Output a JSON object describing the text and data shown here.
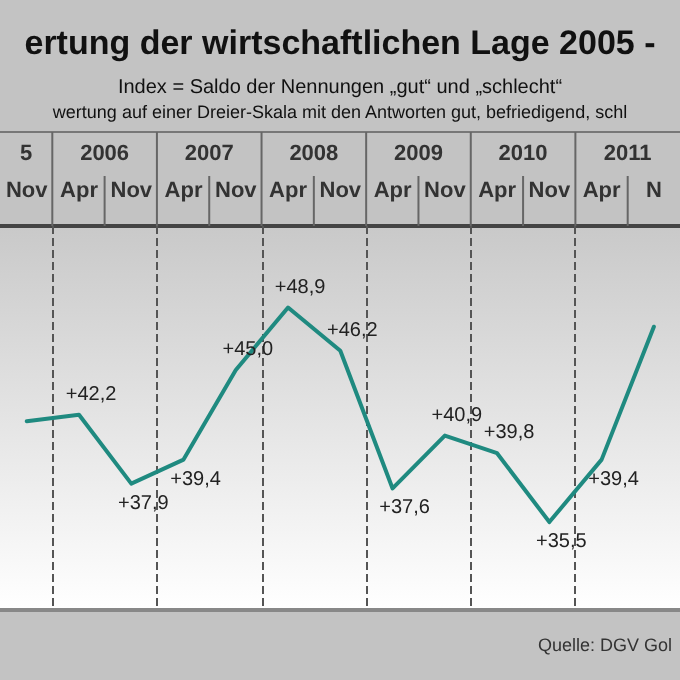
{
  "chart_data": {
    "type": "line",
    "title": "ertung der wirtschaftlichen Lage 2005 -",
    "subtitle": "Index = Saldo der Nennungen „gut“ und „schlecht“",
    "annotations": [
      "wertung auf einer Dreier-Skala mit den Antworten gut, befriedigend, schl",
      "Quelle: DGV Gol",
      "5",
      "2006",
      "2007",
      "2008",
      "2009",
      "2010",
      "2011"
    ],
    "categories": [
      "Nov",
      "Apr",
      "Nov",
      "Apr",
      "Nov",
      "Apr",
      "Nov",
      "Apr",
      "Nov",
      "Apr",
      "Nov",
      "Apr",
      "N"
    ],
    "series": [
      {
        "color": "#1f8a80",
        "values": [
          41.8,
          42.2,
          37.9,
          39.4,
          45.0,
          48.9,
          46.2,
          37.6,
          40.9,
          39.8,
          35.5,
          39.4,
          47.7
        ],
        "value_labels": [
          null,
          "+42,2",
          "+37,9",
          "+39,4",
          "+45,0",
          "+48,9",
          "+46,2",
          "+37,6",
          "+40,9",
          "+39,8",
          "+35,5",
          "+39,4",
          null
        ]
      }
    ],
    "marker": "none",
    "line_style": "solid",
    "grid": "x"
  }
}
